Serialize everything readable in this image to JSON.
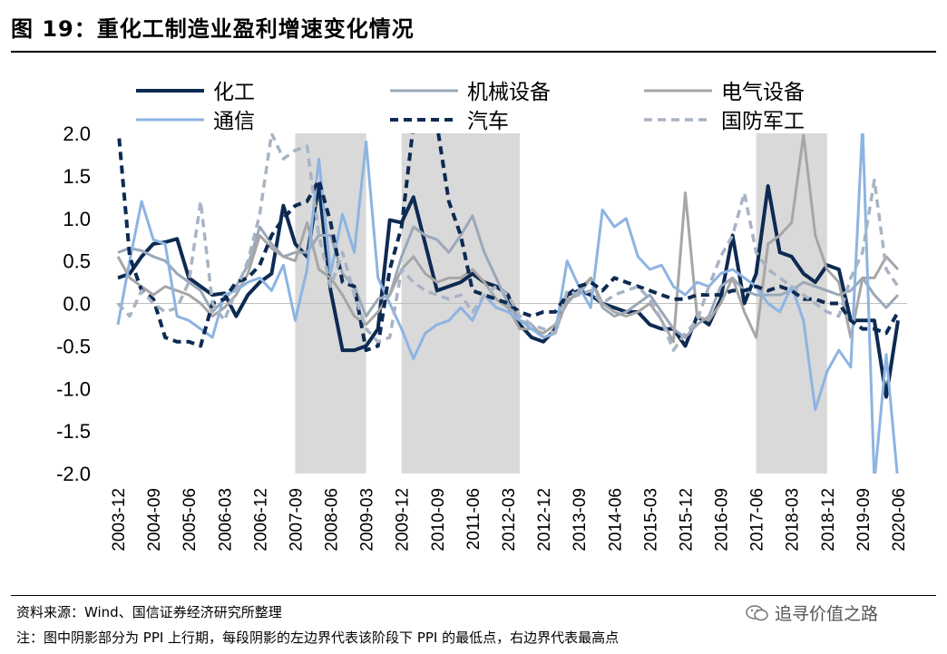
{
  "header": {
    "title": "图 19：重化工制造业盈利增速变化情况"
  },
  "footer": {
    "source": "资料来源：Wind、国信证券经济研究所整理",
    "note": "注：图中阴影部分为 PPI 上行期，每段阴影的左边界代表该阶段下 PPI 的最低点，右边界代表最高点",
    "watermark": "追寻价值之路"
  },
  "colors": {
    "chem": "#0d2a52",
    "mach": "#9aa8b8",
    "elec": "#a6a6a6",
    "comm": "#8db4e2",
    "auto": "#0d2a52",
    "defense": "#a8b4c4",
    "shade": "#d9d9d9"
  },
  "chart_data": {
    "type": "line",
    "title": "",
    "xlabel": "",
    "ylabel": "",
    "ylim": [
      -2.0,
      2.0
    ],
    "yticks": [
      "2.0",
      "1.5",
      "1.0",
      "0.5",
      "0.0",
      "-0.5",
      "-1.0",
      "-1.5",
      "-2.0"
    ],
    "x_tick_labels": [
      "2003-12",
      "2004-09",
      "2005-06",
      "2006-03",
      "2006-12",
      "2007-09",
      "2008-06",
      "2009-03",
      "2009-12",
      "2010-09",
      "2011-06",
      "2012-03",
      "2012-12",
      "2013-09",
      "2014-06",
      "2015-03",
      "2015-12",
      "2016-09",
      "2017-06",
      "2018-03",
      "2018-12",
      "2019-09",
      "2020-06"
    ],
    "n_points": 67,
    "legend_position": "top",
    "grid": false,
    "shaded_ranges": [
      [
        15,
        21
      ],
      [
        24,
        34
      ],
      [
        54,
        60
      ]
    ],
    "series": [
      {
        "name": "化工",
        "style": "solid-thick",
        "values": [
          0.3,
          0.35,
          0.55,
          0.7,
          0.72,
          0.76,
          0.3,
          0.2,
          0.1,
          0.12,
          -0.15,
          0.1,
          0.25,
          0.35,
          1.15,
          0.7,
          0.55,
          1.4,
          0.15,
          -0.55,
          -0.55,
          -0.5,
          -0.3,
          0.98,
          0.95,
          1.25,
          0.7,
          0.15,
          0.2,
          0.25,
          0.35,
          0.25,
          0.2,
          0.1,
          -0.25,
          -0.4,
          -0.45,
          -0.3,
          0.1,
          0.15,
          0.1,
          0.0,
          -0.05,
          -0.1,
          -0.1,
          -0.25,
          -0.3,
          -0.3,
          -0.5,
          -0.15,
          -0.25,
          0.05,
          0.8,
          0.0,
          0.35,
          1.38,
          0.6,
          0.55,
          0.35,
          0.25,
          0.45,
          0.4,
          -0.2,
          -0.2,
          -0.2,
          -1.1,
          -0.2
        ]
      },
      {
        "name": "机械设备",
        "style": "solid",
        "values": [
          0.6,
          0.65,
          0.62,
          0.55,
          0.5,
          0.35,
          0.25,
          0.15,
          -0.1,
          0.05,
          0.2,
          0.45,
          0.9,
          0.7,
          0.55,
          0.6,
          0.6,
          0.8,
          0.8,
          0.35,
          0.2,
          -0.15,
          0.05,
          0.1,
          0.55,
          0.9,
          0.8,
          0.75,
          0.6,
          0.8,
          1.03,
          0.6,
          0.3,
          0.0,
          -0.2,
          -0.25,
          -0.4,
          -0.35,
          0.05,
          0.1,
          0.3,
          -0.05,
          -0.15,
          -0.1,
          0.0,
          0.1,
          -0.1,
          -0.3,
          -0.4,
          -0.25,
          -0.15,
          0.2,
          0.3,
          0.15,
          0.1,
          0.1,
          0.1,
          0.15,
          0.25,
          0.2,
          0.15,
          0.1,
          0.15,
          0.3,
          0.1,
          -0.05,
          0.1
        ]
      },
      {
        "name": "电气设备",
        "style": "solid",
        "values": [
          0.55,
          0.3,
          0.2,
          0.1,
          0.2,
          0.15,
          0.1,
          0.0,
          -0.15,
          -0.05,
          0.1,
          0.35,
          0.8,
          0.65,
          0.55,
          0.5,
          0.95,
          0.4,
          0.3,
          0.1,
          -0.15,
          -0.25,
          -0.1,
          0.1,
          0.4,
          0.55,
          0.35,
          0.25,
          0.3,
          0.3,
          0.4,
          0.25,
          0.05,
          -0.05,
          -0.3,
          -0.3,
          -0.35,
          -0.25,
          0.0,
          0.15,
          0.3,
          0.0,
          -0.1,
          -0.15,
          -0.1,
          0.0,
          -0.2,
          -0.45,
          1.3,
          -0.15,
          -0.2,
          0.0,
          0.3,
          -0.1,
          -0.4,
          0.7,
          0.8,
          0.95,
          1.98,
          0.8,
          0.4,
          0.25,
          -0.4,
          0.3,
          0.3,
          0.55,
          0.4
        ]
      },
      {
        "name": "通信",
        "style": "solid",
        "values": [
          -0.25,
          0.5,
          1.2,
          0.75,
          0.7,
          -0.15,
          -0.2,
          -0.3,
          -0.4,
          0.1,
          0.15,
          0.25,
          0.3,
          0.15,
          0.45,
          -0.2,
          0.4,
          1.7,
          0.35,
          1.05,
          0.6,
          1.9,
          0.3,
          0.0,
          -0.3,
          -0.65,
          -0.35,
          -0.25,
          -0.2,
          -0.05,
          -0.2,
          0.1,
          -0.05,
          -0.1,
          -0.2,
          -0.3,
          -0.4,
          -0.35,
          0.5,
          0.2,
          -0.05,
          1.1,
          0.9,
          1.0,
          0.55,
          0.4,
          0.45,
          0.2,
          0.1,
          0.25,
          0.2,
          0.35,
          0.4,
          0.3,
          0.2,
          0.0,
          -0.1,
          0.2,
          -0.2,
          -1.25,
          -0.8,
          -0.55,
          -0.75,
          2.1,
          -2.1,
          -0.6,
          -2.1
        ]
      },
      {
        "name": "汽车",
        "style": "dashed-thick",
        "values": [
          2.1,
          0.55,
          0.15,
          0.05,
          -0.4,
          -0.45,
          -0.45,
          -0.5,
          0.0,
          0.05,
          0.25,
          0.3,
          0.45,
          0.8,
          1.0,
          1.15,
          1.2,
          1.45,
          0.95,
          0.25,
          0.2,
          -0.55,
          -0.5,
          0.4,
          0.9,
          2.1,
          2.1,
          2.1,
          1.2,
          0.8,
          0.15,
          0.1,
          0.05,
          0.0,
          -0.1,
          -0.15,
          -0.1,
          -0.1,
          0.1,
          0.2,
          0.25,
          0.15,
          0.3,
          0.25,
          0.2,
          0.15,
          0.1,
          0.05,
          0.05,
          0.1,
          0.1,
          0.1,
          0.15,
          0.15,
          0.2,
          0.15,
          0.2,
          0.15,
          0.05,
          0.05,
          0.0,
          0.0,
          -0.2,
          -0.3,
          -0.3,
          -0.35,
          -0.1
        ]
      },
      {
        "name": "国防军工",
        "style": "dashed",
        "values": [
          0.0,
          -0.15,
          0.15,
          0.0,
          -0.1,
          -0.05,
          0.25,
          1.2,
          0.0,
          -0.2,
          0.15,
          0.5,
          1.05,
          2.0,
          1.7,
          1.8,
          1.85,
          0.8,
          0.2,
          0.6,
          0.1,
          -0.3,
          -0.45,
          -0.4,
          0.4,
          0.25,
          0.15,
          0.1,
          0.05,
          0.1,
          -0.1,
          0.1,
          0.2,
          0.1,
          -0.15,
          -0.25,
          -0.3,
          -0.35,
          0.15,
          0.1,
          0.15,
          0.0,
          0.1,
          0.15,
          0.2,
          0.05,
          -0.2,
          -0.55,
          -0.35,
          -0.2,
          0.2,
          0.55,
          0.8,
          1.3,
          0.6,
          0.4,
          0.3,
          0.2,
          0.1,
          0.0,
          -0.1,
          -0.15,
          0.3,
          0.6,
          1.45,
          0.4,
          0.2
        ]
      }
    ]
  }
}
